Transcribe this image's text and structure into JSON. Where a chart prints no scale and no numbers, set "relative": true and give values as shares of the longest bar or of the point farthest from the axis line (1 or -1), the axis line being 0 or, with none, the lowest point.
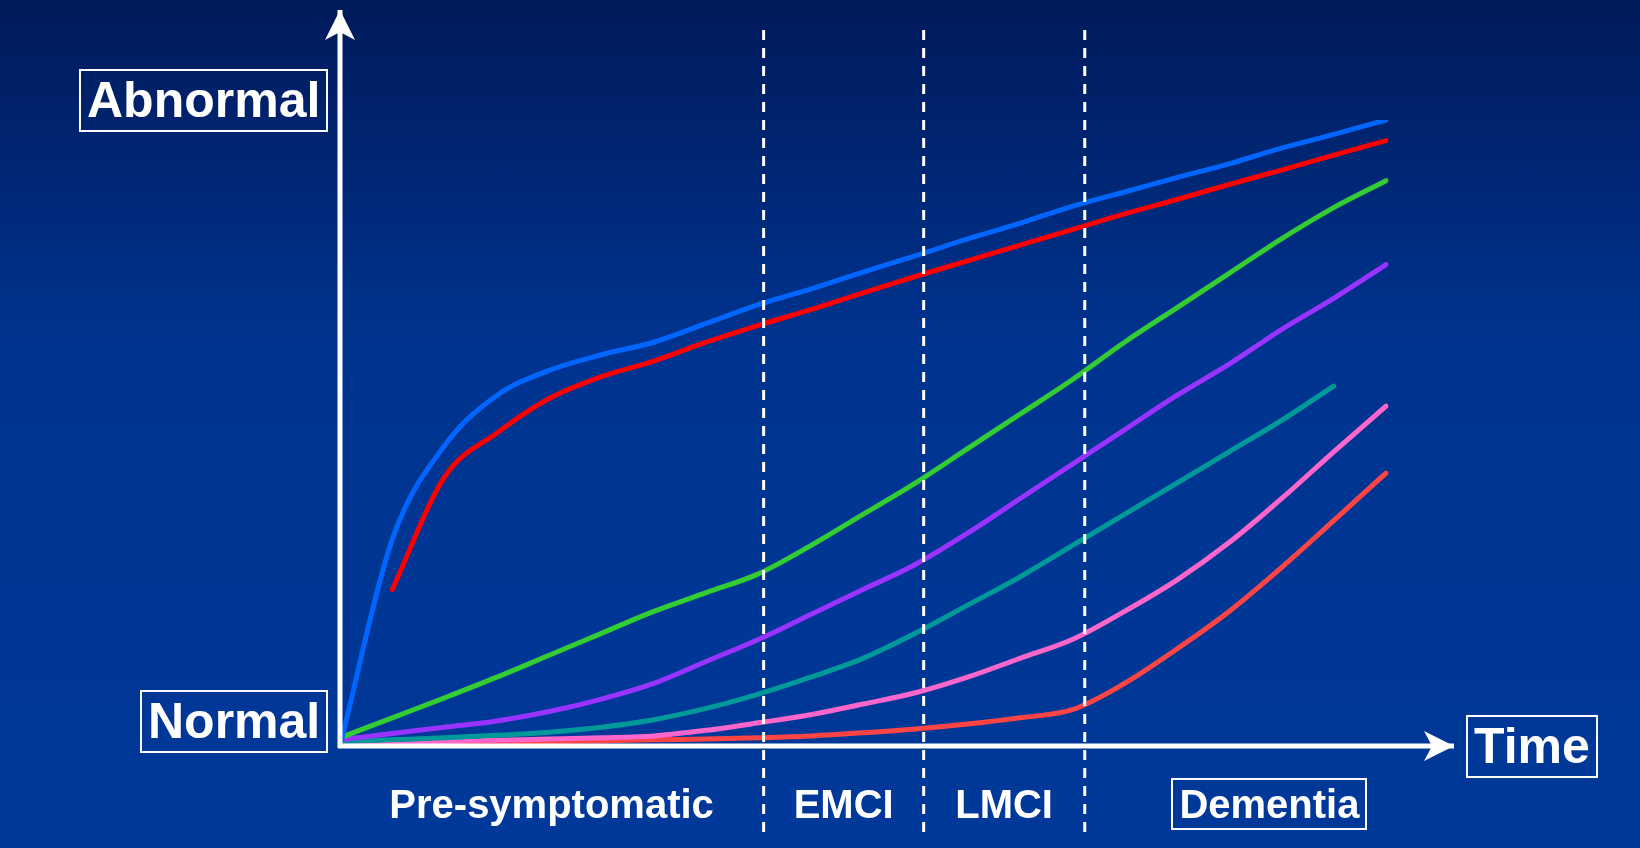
{
  "chart_data": {
    "type": "line",
    "relative": true,
    "xlabel": "Time",
    "annotations": [
      "Abnormal",
      "Normal",
      "Pre-symptomatic",
      "EMCI",
      "LMCI",
      "Dementia"
    ],
    "categories": [
      null,
      null,
      null,
      null,
      null,
      null,
      null,
      null,
      null,
      null,
      null,
      null,
      null,
      null,
      null,
      null,
      null,
      null,
      null,
      null,
      null
    ],
    "legend": false,
    "grid": false,
    "marker": "none",
    "line_style": "solid",
    "series": [
      {
        "color": "#0066ff",
        "values": [
          0,
          0.33,
          0.48,
          0.56,
          0.6,
          0.625,
          0.645,
          0.675,
          0.705,
          0.73,
          0.757,
          0.783,
          0.81,
          0.835,
          0.862,
          0.885,
          0.908,
          0.93,
          0.955,
          0.977,
          1
        ]
      },
      {
        "color": "#ff0000",
        "values": [
          null,
          0.25,
          0.43,
          0.5,
          0.555,
          0.59,
          0.615,
          0.645,
          0.672,
          0.697,
          0.724,
          0.75,
          0.775,
          0.8,
          0.825,
          0.85,
          0.873,
          0.897,
          0.92,
          0.944,
          0.967
        ]
      },
      {
        "color": "#33cc33",
        "values": [
          0.013,
          0.045,
          0.077,
          0.11,
          0.145,
          0.18,
          0.215,
          0.245,
          0.275,
          0.32,
          0.37,
          0.42,
          0.475,
          0.53,
          0.585,
          0.645,
          0.7,
          0.755,
          0.81,
          0.86,
          0.903
        ]
      },
      {
        "color": "#9933ff",
        "values": [
          0.01,
          0.02,
          0.03,
          0.04,
          0.055,
          0.075,
          0.1,
          0.135,
          0.17,
          0.21,
          0.25,
          0.29,
          0.34,
          0.395,
          0.45,
          0.505,
          0.56,
          0.61,
          0.665,
          0.715,
          0.769
        ]
      },
      {
        "color": "#009999",
        "values": [
          0.007,
          0.01,
          0.013,
          0.017,
          0.022,
          0.03,
          0.042,
          0.06,
          0.083,
          0.11,
          0.14,
          0.18,
          0.225,
          0.27,
          0.32,
          0.37,
          0.42,
          0.47,
          0.52,
          0.575,
          null
        ]
      },
      {
        "color": "#ff66cc",
        "values": [
          0.005,
          0.006,
          0.007,
          0.009,
          0.011,
          0.013,
          0.016,
          0.025,
          0.037,
          0.05,
          0.067,
          0.085,
          0.11,
          0.14,
          0.17,
          0.215,
          0.265,
          0.325,
          0.395,
          0.47,
          0.543
        ]
      },
      {
        "color": "#ff4444",
        "values": [
          null,
          null,
          0.005,
          0.006,
          0.007,
          0.008,
          0.01,
          0.011,
          0.013,
          0.016,
          0.021,
          0.027,
          0.035,
          0.045,
          0.058,
          0.1,
          0.155,
          0.215,
          0.285,
          0.36,
          0.436
        ]
      }
    ]
  }
}
